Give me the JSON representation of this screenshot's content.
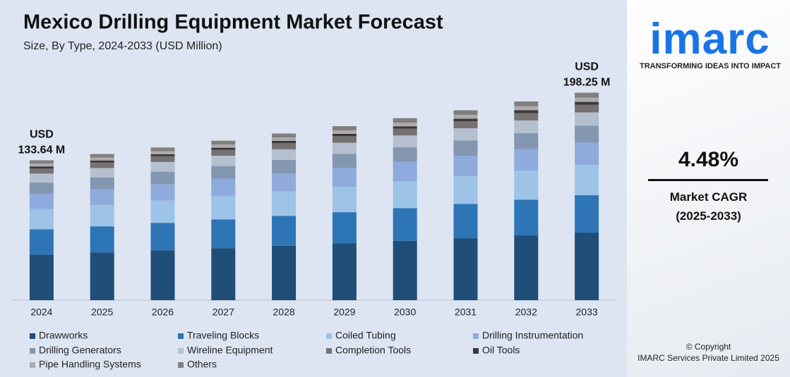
{
  "chart_data": {
    "type": "stacked_bar",
    "title": "Mexico Drilling Equipment Market Forecast",
    "subtitle": "Size, By Type, 2024-2033 (USD Million)",
    "categories": [
      "2024",
      "2025",
      "2026",
      "2027",
      "2028",
      "2029",
      "2030",
      "2031",
      "2032",
      "2033"
    ],
    "ylim": [
      0,
      200
    ],
    "legend": "bottom",
    "annotations": [
      [
        "USD",
        "133.64 M"
      ],
      [
        "USD",
        "198.25 M"
      ]
    ],
    "series": [
      {
        "name": "Drawworks",
        "color": "#1f4e79",
        "values": [
          43.6,
          45.5,
          47.6,
          49.7,
          51.9,
          54.2,
          56.7,
          59.2,
          61.9,
          64.6
        ]
      },
      {
        "name": "Traveling Blocks",
        "color": "#2e75b6",
        "values": [
          24.1,
          25.1,
          26.3,
          27.4,
          28.7,
          29.9,
          31.3,
          32.7,
          34.2,
          35.7
        ]
      },
      {
        "name": "Coiled Tubing",
        "color": "#9dc3e6",
        "values": [
          19.5,
          20.4,
          21.3,
          22.3,
          23.3,
          24.3,
          25.4,
          26.5,
          27.7,
          28.9
        ]
      },
      {
        "name": "Drilling Instrumentation",
        "color": "#8faadc",
        "values": [
          14.4,
          15.1,
          15.8,
          16.5,
          17.2,
          18.0,
          18.8,
          19.6,
          20.5,
          21.4
        ]
      },
      {
        "name": "Drilling Generators",
        "color": "#8497b0",
        "values": [
          10.8,
          11.3,
          11.8,
          12.3,
          12.9,
          13.5,
          14.1,
          14.7,
          15.4,
          16.1
        ]
      },
      {
        "name": "Wireline Equipment",
        "color": "#b4bfcf",
        "values": [
          8.6,
          8.9,
          9.3,
          9.8,
          10.2,
          10.6,
          11.1,
          11.6,
          12.1,
          12.7
        ]
      },
      {
        "name": "Completion Tools",
        "color": "#767171",
        "values": [
          4.9,
          5.2,
          5.4,
          5.6,
          5.9,
          6.2,
          6.4,
          6.7,
          7.0,
          7.3
        ]
      },
      {
        "name": "Oil Tools",
        "color": "#3a3838",
        "values": [
          1.9,
          2.0,
          2.0,
          2.1,
          2.2,
          2.3,
          2.4,
          2.5,
          2.7,
          2.8
        ]
      },
      {
        "name": "Pipe Handling Systems",
        "color": "#aeaaaa",
        "values": [
          2.7,
          2.8,
          2.9,
          3.0,
          3.2,
          3.3,
          3.5,
          3.6,
          3.8,
          4.0
        ]
      },
      {
        "name": "Others",
        "color": "#808080",
        "values": [
          3.2,
          3.4,
          3.5,
          3.7,
          3.8,
          4.0,
          4.2,
          4.4,
          4.6,
          4.8
        ]
      }
    ]
  },
  "sidebar": {
    "logo": "imarc",
    "tagline": "TRANSFORMING IDEAS INTO IMPACT",
    "cagr": "4.48%",
    "cagr_label": "Market CAGR",
    "cagr_period": "(2025-2033)",
    "copyright": "© Copyright",
    "company": "IMARC Services Private Limited 2025"
  }
}
